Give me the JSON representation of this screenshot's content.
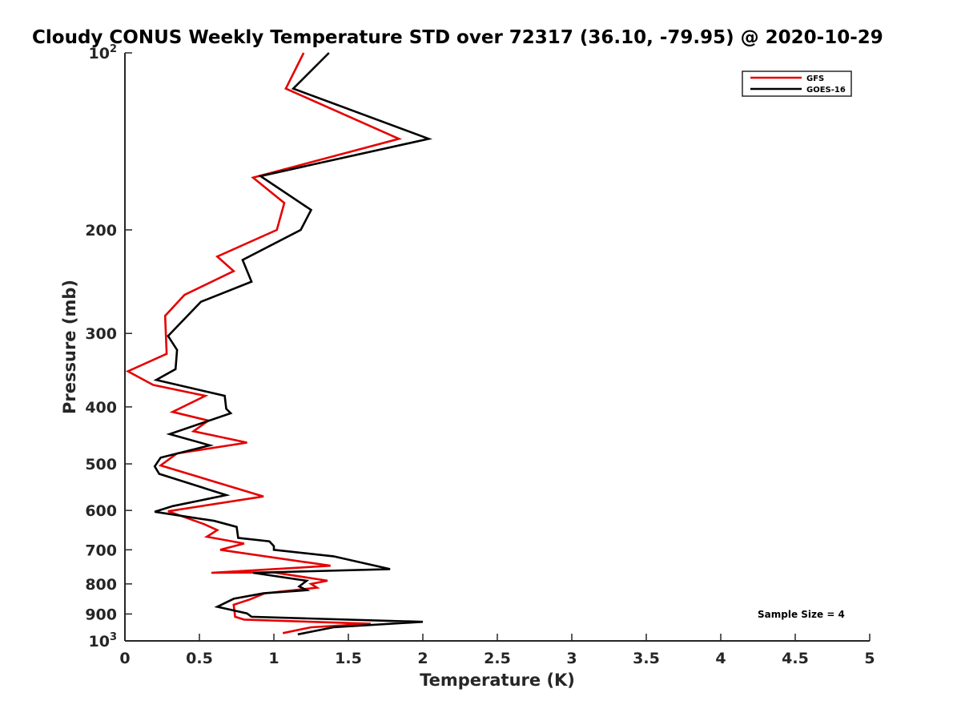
{
  "chart_data": {
    "type": "line",
    "title": "Cloudy CONUS Weekly Temperature STD over 72317 (36.10, -79.95) @ 2020-10-29",
    "xlabel": "Temperature (K)",
    "ylabel": "Pressure (mb)",
    "xlim": [
      0,
      5
    ],
    "ylim": [
      100,
      1000
    ],
    "yscale": "log",
    "y_reversed": true,
    "xticks": [
      "0",
      "0.5",
      "1",
      "1.5",
      "2",
      "2.5",
      "3",
      "3.5",
      "4",
      "4.5",
      "5"
    ],
    "xtick_values": [
      0,
      0.5,
      1,
      1.5,
      2,
      2.5,
      3,
      3.5,
      4,
      4.5,
      5
    ],
    "yticks": [
      {
        "value": 100,
        "label": "10",
        "exp": "2"
      },
      {
        "value": 200,
        "label": "200"
      },
      {
        "value": 300,
        "label": "300"
      },
      {
        "value": 400,
        "label": "400"
      },
      {
        "value": 500,
        "label": "500"
      },
      {
        "value": 600,
        "label": "600"
      },
      {
        "value": 700,
        "label": "700"
      },
      {
        "value": 800,
        "label": "800"
      },
      {
        "value": 900,
        "label": "900"
      },
      {
        "value": 1000,
        "label": "10",
        "exp": "3"
      }
    ],
    "grid": false,
    "legend_position": "top-right",
    "annotation": "Sample Size = 4",
    "series": [
      {
        "name": "GFS",
        "color": "#e60000",
        "points": [
          [
            1.2,
            100
          ],
          [
            1.08,
            115
          ],
          [
            1.84,
            140
          ],
          [
            0.86,
            163
          ],
          [
            1.07,
            180
          ],
          [
            1.02,
            200
          ],
          [
            0.62,
            222
          ],
          [
            0.73,
            235
          ],
          [
            0.4,
            258
          ],
          [
            0.27,
            280
          ],
          [
            0.28,
            325
          ],
          [
            0.02,
            348
          ],
          [
            0.19,
            367
          ],
          [
            0.54,
            383
          ],
          [
            0.32,
            408
          ],
          [
            0.56,
            422
          ],
          [
            0.46,
            440
          ],
          [
            0.82,
            460
          ],
          [
            0.35,
            480
          ],
          [
            0.24,
            503
          ],
          [
            0.93,
            568
          ],
          [
            0.29,
            602
          ],
          [
            0.53,
            633
          ],
          [
            0.62,
            648
          ],
          [
            0.55,
            665
          ],
          [
            0.8,
            683
          ],
          [
            0.64,
            700
          ],
          [
            1.38,
            745
          ],
          [
            0.58,
            766
          ],
          [
            1.0,
            765
          ],
          [
            1.36,
            790
          ],
          [
            1.25,
            800
          ],
          [
            1.29,
            812
          ],
          [
            0.94,
            830
          ],
          [
            0.84,
            850
          ],
          [
            0.73,
            868
          ],
          [
            0.74,
            910
          ],
          [
            0.8,
            920
          ],
          [
            1.65,
            935
          ],
          [
            1.25,
            948
          ],
          [
            1.06,
            970
          ]
        ]
      },
      {
        "name": "GOES-16",
        "color": "#000000",
        "points": [
          [
            1.37,
            100
          ],
          [
            1.13,
            115
          ],
          [
            2.04,
            140
          ],
          [
            0.91,
            162
          ],
          [
            1.25,
            185
          ],
          [
            1.18,
            200
          ],
          [
            0.79,
            225
          ],
          [
            0.85,
            245
          ],
          [
            0.51,
            265
          ],
          [
            0.29,
            303
          ],
          [
            0.35,
            320
          ],
          [
            0.34,
            345
          ],
          [
            0.21,
            360
          ],
          [
            0.67,
            383
          ],
          [
            0.68,
            403
          ],
          [
            0.71,
            410
          ],
          [
            0.3,
            445
          ],
          [
            0.57,
            465
          ],
          [
            0.24,
            488
          ],
          [
            0.2,
            505
          ],
          [
            0.23,
            520
          ],
          [
            0.68,
            565
          ],
          [
            0.32,
            590
          ],
          [
            0.2,
            603
          ],
          [
            0.6,
            625
          ],
          [
            0.75,
            640
          ],
          [
            0.76,
            668
          ],
          [
            0.97,
            677
          ],
          [
            1.0,
            690
          ],
          [
            1.0,
            700
          ],
          [
            1.4,
            718
          ],
          [
            1.78,
            755
          ],
          [
            0.86,
            766
          ],
          [
            1.22,
            790
          ],
          [
            1.17,
            808
          ],
          [
            1.22,
            820
          ],
          [
            0.93,
            830
          ],
          [
            0.73,
            848
          ],
          [
            0.62,
            875
          ],
          [
            0.82,
            898
          ],
          [
            0.85,
            910
          ],
          [
            2.0,
            928
          ],
          [
            1.4,
            948
          ],
          [
            1.16,
            975
          ]
        ]
      }
    ]
  }
}
